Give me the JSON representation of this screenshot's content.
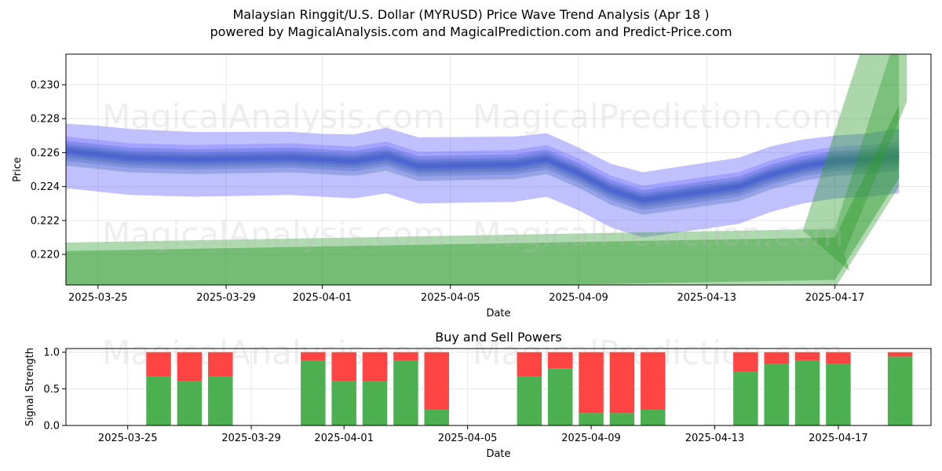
{
  "header": {
    "title": "Malaysian Ringgit/U.S. Dollar (MYRUSD) Price Wave Trend Analysis (Apr 18 )",
    "subtitle": "powered by MagicalAnalysis.com and MagicalPrediction.com and Predict-Price.com"
  },
  "watermarks": [
    "MagicalAnalysis.com",
    "MagicalPrediction.com"
  ],
  "colors": {
    "blue": "#3b3bff",
    "green": "#2e9a2e",
    "buy": "#4caf50",
    "sell": "#ff4444",
    "grid": "#e6e6e6"
  },
  "chart_data": [
    {
      "type": "area",
      "title": "",
      "xlabel": "Date",
      "ylabel": "Price",
      "x_start": "2025-03-24",
      "x_end": "2025-04-20",
      "ylim": [
        0.2182,
        0.2318
      ],
      "grid": true,
      "x_ticks": [
        "2025-03-25",
        "2025-03-29",
        "2025-04-01",
        "2025-04-05",
        "2025-04-09",
        "2025-04-13",
        "2025-04-17"
      ],
      "y_ticks": [
        "0.220",
        "0.222",
        "0.224",
        "0.226",
        "0.228",
        "0.230"
      ],
      "series": [
        {
          "color": "blue",
          "x": [
            "2025-03-24",
            "2025-03-25",
            "2025-03-26",
            "2025-03-28",
            "2025-03-31",
            "2025-04-01",
            "2025-04-02",
            "2025-04-03",
            "2025-04-04",
            "2025-04-07",
            "2025-04-08",
            "2025-04-09",
            "2025-04-10",
            "2025-04-11",
            "2025-04-14",
            "2025-04-15",
            "2025-04-16",
            "2025-04-17",
            "2025-04-18",
            "2025-04-19"
          ],
          "y": [
            0.2261,
            0.2259,
            0.2257,
            0.2256,
            0.2257,
            0.2256,
            0.2255,
            0.2258,
            0.2252,
            0.2253,
            0.2256,
            0.2248,
            0.2238,
            0.2232,
            0.224,
            0.2247,
            0.2252,
            0.2255,
            0.2256,
            0.2258
          ]
        },
        {
          "color": "green",
          "x": [
            "2025-03-24",
            "2025-04-17",
            "2025-04-19"
          ],
          "y": [
            0.2202,
            0.221,
            0.227
          ]
        }
      ]
    },
    {
      "type": "bar",
      "title": "Buy and Sell Powers",
      "xlabel": "Date",
      "ylabel": "Signal Strength",
      "x_start": "2025-03-23",
      "x_end": "2025-04-20",
      "ylim": [
        0,
        1.05
      ],
      "grid": true,
      "x_ticks": [
        "2025-03-25",
        "2025-03-29",
        "2025-04-01",
        "2025-04-05",
        "2025-04-09",
        "2025-04-13",
        "2025-04-17"
      ],
      "y_ticks": [
        "0.0",
        "0.5",
        "1.0"
      ],
      "series": [
        {
          "name": "buy",
          "dates": [
            "2025-03-26",
            "2025-03-27",
            "2025-03-28",
            "2025-03-31",
            "2025-04-01",
            "2025-04-02",
            "2025-04-03",
            "2025-04-04",
            "2025-04-07",
            "2025-04-08",
            "2025-04-09",
            "2025-04-10",
            "2025-04-11",
            "2025-04-14",
            "2025-04-15",
            "2025-04-16",
            "2025-04-17",
            "2025-04-19"
          ],
          "values": [
            0.67,
            0.61,
            0.67,
            0.89,
            0.61,
            0.61,
            0.89,
            0.22,
            0.67,
            0.78,
            0.17,
            0.17,
            0.22,
            0.73,
            0.84,
            0.89,
            0.84,
            0.94
          ]
        },
        {
          "name": "sell",
          "dates": [
            "2025-03-26",
            "2025-03-27",
            "2025-03-28",
            "2025-03-31",
            "2025-04-01",
            "2025-04-02",
            "2025-04-03",
            "2025-04-04",
            "2025-04-07",
            "2025-04-08",
            "2025-04-09",
            "2025-04-10",
            "2025-04-11",
            "2025-04-14",
            "2025-04-15",
            "2025-04-16",
            "2025-04-17",
            "2025-04-19"
          ],
          "values": [
            0.33,
            0.39,
            0.33,
            0.11,
            0.39,
            0.39,
            0.11,
            0.78,
            0.33,
            0.22,
            0.83,
            0.83,
            0.78,
            0.27,
            0.16,
            0.11,
            0.16,
            0.06
          ]
        }
      ]
    }
  ]
}
